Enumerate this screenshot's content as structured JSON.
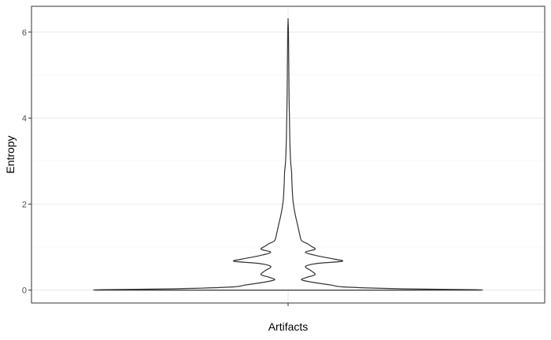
{
  "chart_data": {
    "type": "violin",
    "title": "",
    "xlabel": "Artifacts",
    "ylabel": "Entropy",
    "categories": [
      "Artifacts"
    ],
    "ylim": [
      -0.3,
      6.6
    ],
    "yticks": [
      0,
      2,
      4,
      6
    ],
    "ytick_labels": [
      "0",
      "2",
      "4",
      "6"
    ],
    "grid": true,
    "legend": "none",
    "colors": {
      "outline": "#333333",
      "grid_major": "#ebebeb",
      "grid_minor": "#f5f5f5",
      "panel_border": "#333333"
    },
    "series": [
      {
        "category": "Artifacts",
        "y_min": 0,
        "y_max": 6.28,
        "density_profile": [
          [
            0.0,
            1.0
          ],
          [
            0.01,
            0.97
          ],
          [
            0.03,
            0.6
          ],
          [
            0.07,
            0.3
          ],
          [
            0.12,
            0.22
          ],
          [
            0.18,
            0.13
          ],
          [
            0.24,
            0.07
          ],
          [
            0.3,
            0.1
          ],
          [
            0.36,
            0.14
          ],
          [
            0.45,
            0.12
          ],
          [
            0.55,
            0.09
          ],
          [
            0.62,
            0.15
          ],
          [
            0.67,
            0.28
          ],
          [
            0.72,
            0.24
          ],
          [
            0.8,
            0.15
          ],
          [
            0.88,
            0.09
          ],
          [
            0.95,
            0.14
          ],
          [
            1.02,
            0.12
          ],
          [
            1.08,
            0.1
          ],
          [
            1.15,
            0.07
          ],
          [
            1.3,
            0.06
          ],
          [
            1.5,
            0.05
          ],
          [
            1.8,
            0.035
          ],
          [
            2.1,
            0.025
          ],
          [
            2.5,
            0.02
          ],
          [
            2.75,
            0.018
          ],
          [
            3.0,
            0.013
          ],
          [
            3.5,
            0.009
          ],
          [
            4.0,
            0.007
          ],
          [
            4.5,
            0.005
          ],
          [
            5.0,
            0.004
          ],
          [
            5.5,
            0.003
          ],
          [
            6.0,
            0.002
          ],
          [
            6.28,
            0.0
          ]
        ]
      }
    ]
  }
}
